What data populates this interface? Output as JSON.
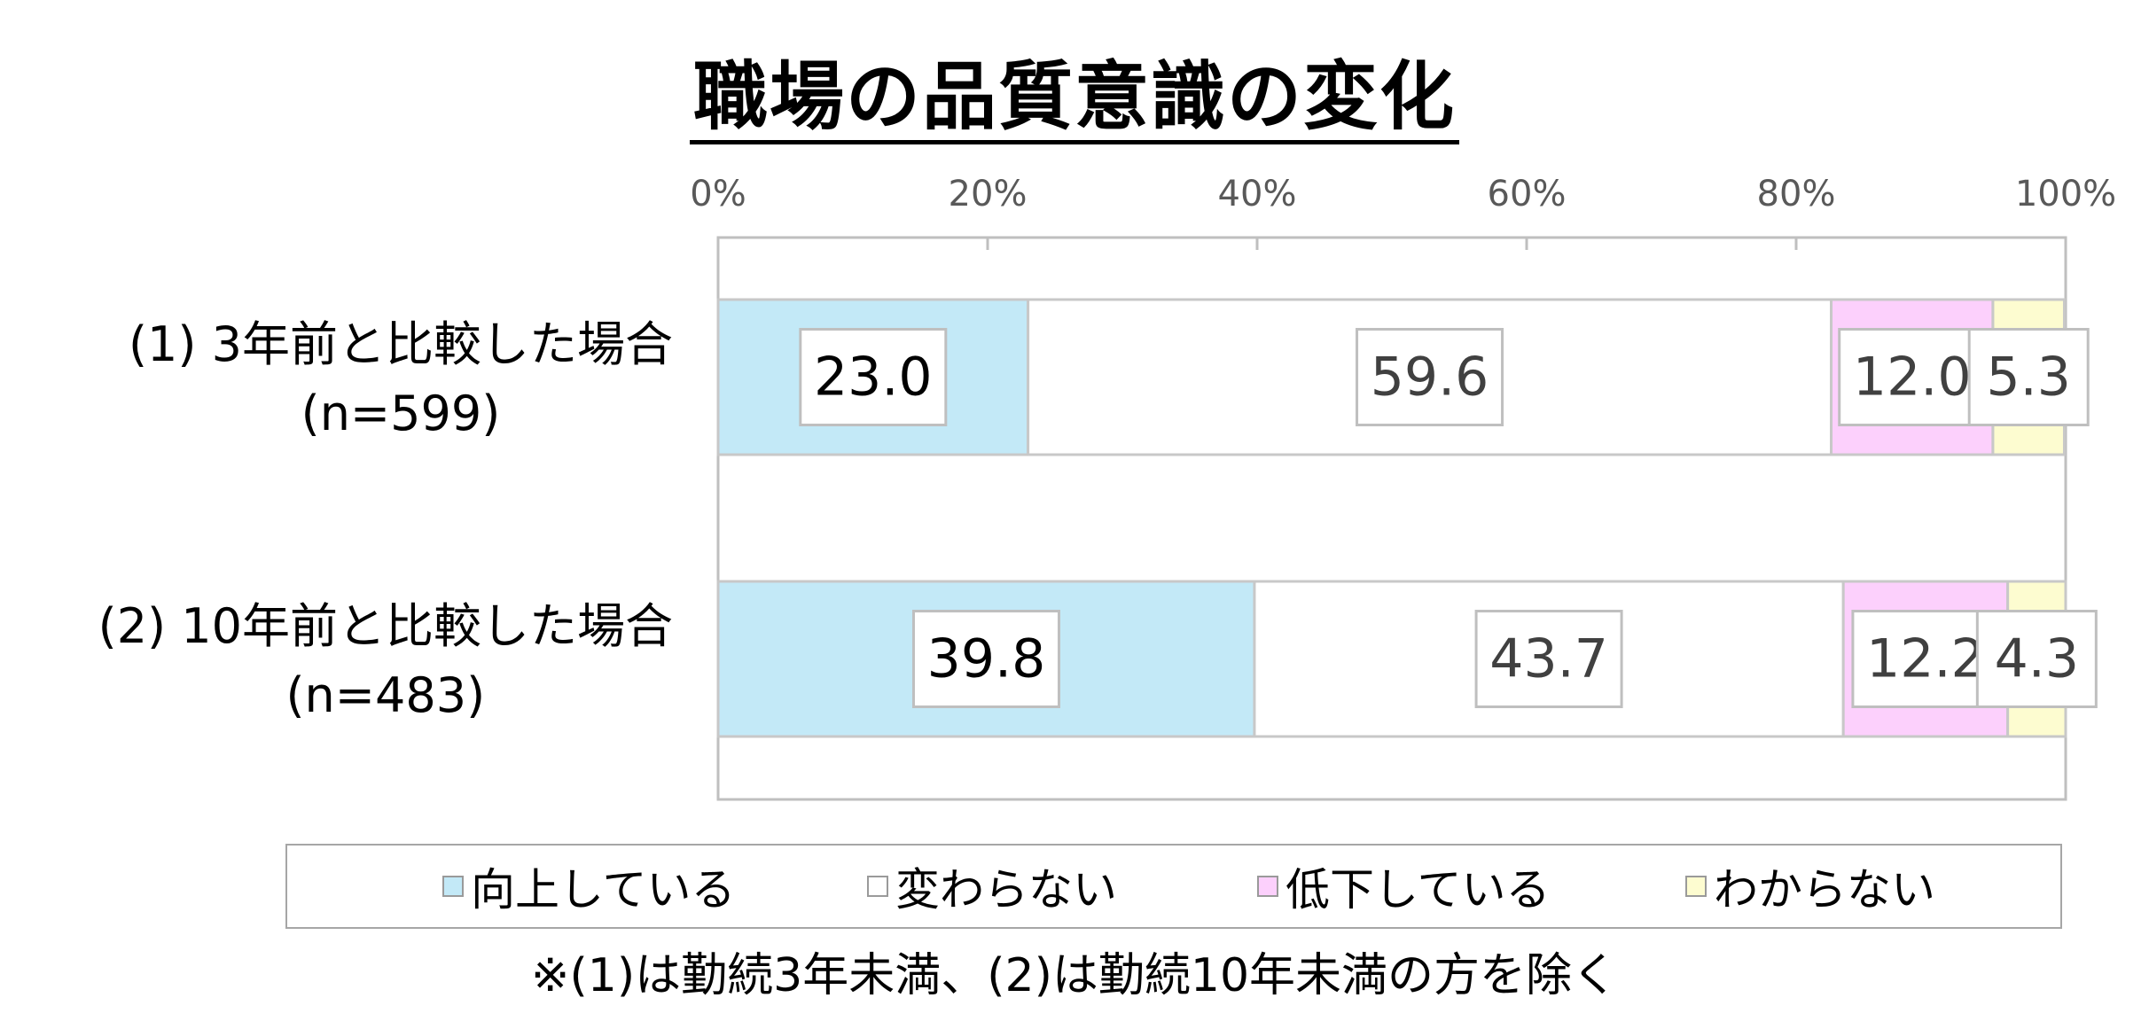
{
  "chart_data": {
    "type": "bar",
    "orientation": "horizontal",
    "stacked": true,
    "title": "職場の品質意識の変化",
    "categories": [
      {
        "label": "(1) 3年前と比較した場合",
        "n": "(n=599)"
      },
      {
        "label": "(2) 10年前と比較した場合",
        "n": "(n=483)"
      }
    ],
    "series": [
      {
        "name": "向上している",
        "color": "#c3e9f7",
        "values": [
          23.0,
          39.8
        ],
        "labels": [
          "23.0",
          "39.8"
        ]
      },
      {
        "name": "変わらない",
        "color": "#ffffff",
        "values": [
          59.6,
          43.7
        ],
        "labels": [
          "59.6",
          "43.7"
        ]
      },
      {
        "name": "低下している",
        "color": "#fcd0fc",
        "values": [
          12.0,
          12.2
        ],
        "labels": [
          "12.0",
          "12.2"
        ]
      },
      {
        "name": "わからない",
        "color": "#fdfcd0",
        "values": [
          5.3,
          4.3
        ],
        "labels": [
          "5.3",
          "4.3"
        ]
      }
    ],
    "xlim": [
      0,
      100
    ],
    "xticks": [
      "0%",
      "20%",
      "40%",
      "60%",
      "80%",
      "100%"
    ],
    "axis_position": "top",
    "legend_position": "bottom",
    "footnote": "※(1)は勤続3年未満、(2)は勤続10年未満の方を除く"
  }
}
